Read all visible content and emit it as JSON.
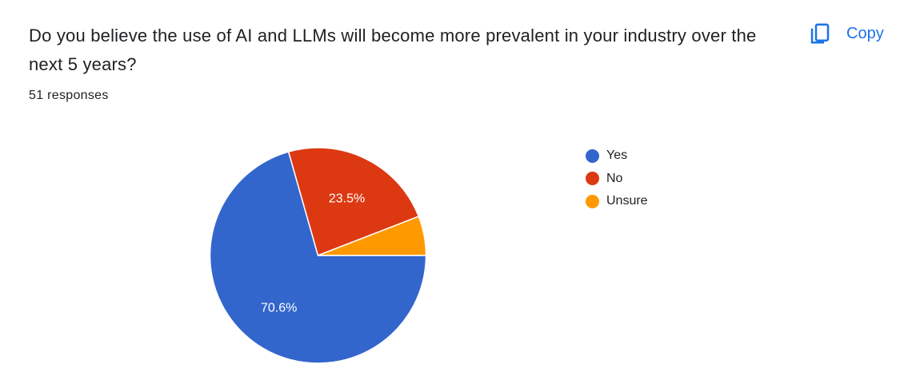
{
  "question": {
    "title": "Do you believe the use of AI and LLMs will become more prevalent in your industry over the next 5 years?",
    "response_count": "51 responses"
  },
  "toolbar": {
    "copy_label": "Copy",
    "copy_icon": "copy-icon",
    "accent_color": "#1a73e8"
  },
  "chart_data": {
    "type": "pie",
    "legend_position": "right",
    "slices": [
      {
        "label": "Yes",
        "value": 70.6,
        "display": "70.6%",
        "color": "#3366cc"
      },
      {
        "label": "No",
        "value": 23.5,
        "display": "23.5%",
        "color": "#dc3912"
      },
      {
        "label": "Unsure",
        "value": 5.9,
        "display": "",
        "color": "#ff9900"
      }
    ]
  }
}
